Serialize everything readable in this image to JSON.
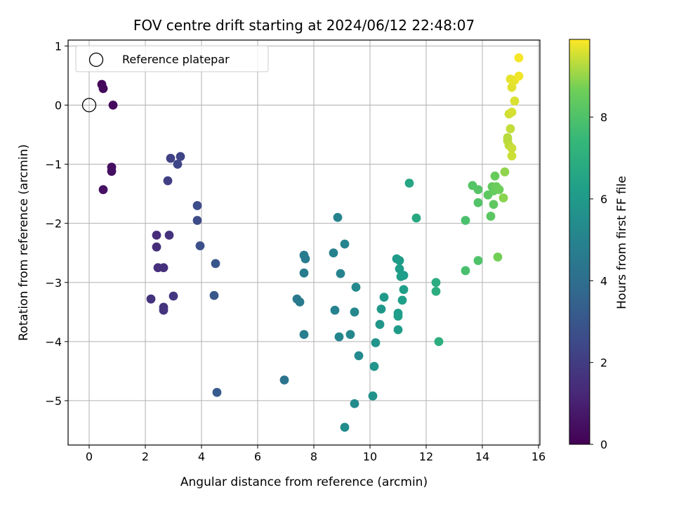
{
  "chart_data": {
    "type": "scatter",
    "title": "FOV centre drift starting at 2024/06/12 22:48:07",
    "xlabel": "Angular distance from reference (arcmin)",
    "ylabel": "Rotation from reference (arcmin)",
    "xlim": [
      -0.75,
      16.05
    ],
    "ylim": [
      -5.75,
      1.1
    ],
    "xticks": [
      0,
      2,
      4,
      6,
      8,
      10,
      12,
      14,
      16
    ],
    "yticks": [
      1,
      0,
      -1,
      -2,
      -3,
      -4,
      -5
    ],
    "grid": true,
    "legend": {
      "placement": "top-left",
      "entries": [
        {
          "label": "Reference platepar",
          "marker": "open-circle"
        }
      ]
    },
    "reference_point": {
      "x": 0,
      "y": 0
    },
    "colorbar": {
      "label": "Hours from first FF file",
      "colormap": "viridis",
      "range": [
        0,
        9.9
      ],
      "ticks": [
        0,
        2,
        4,
        6,
        8
      ]
    },
    "points": [
      {
        "x": 0.45,
        "y": 0.35,
        "c": 0.2
      },
      {
        "x": 0.5,
        "y": 0.28,
        "c": 0.25
      },
      {
        "x": 0.85,
        "y": 0.0,
        "c": 0.3
      },
      {
        "x": 0.8,
        "y": -1.05,
        "c": 0.4
      },
      {
        "x": 0.8,
        "y": -1.12,
        "c": 0.45
      },
      {
        "x": 0.5,
        "y": -1.43,
        "c": 0.5
      },
      {
        "x": 2.9,
        "y": -0.9,
        "c": 2.2
      },
      {
        "x": 3.25,
        "y": -0.87,
        "c": 2.3
      },
      {
        "x": 3.15,
        "y": -1.0,
        "c": 2.35
      },
      {
        "x": 2.8,
        "y": -1.28,
        "c": 2.1
      },
      {
        "x": 3.85,
        "y": -1.7,
        "c": 2.6
      },
      {
        "x": 3.85,
        "y": -1.95,
        "c": 2.55
      },
      {
        "x": 3.95,
        "y": -2.38,
        "c": 2.7
      },
      {
        "x": 2.4,
        "y": -2.2,
        "c": 1.4
      },
      {
        "x": 2.85,
        "y": -2.2,
        "c": 1.6
      },
      {
        "x": 2.4,
        "y": -2.4,
        "c": 1.45
      },
      {
        "x": 2.45,
        "y": -2.75,
        "c": 1.5
      },
      {
        "x": 2.65,
        "y": -2.75,
        "c": 1.55
      },
      {
        "x": 3.0,
        "y": -3.23,
        "c": 1.8
      },
      {
        "x": 2.2,
        "y": -3.28,
        "c": 1.6
      },
      {
        "x": 2.65,
        "y": -3.42,
        "c": 1.7
      },
      {
        "x": 2.65,
        "y": -3.47,
        "c": 1.72
      },
      {
        "x": 4.5,
        "y": -2.68,
        "c": 3.0
      },
      {
        "x": 4.45,
        "y": -3.22,
        "c": 3.05
      },
      {
        "x": 4.55,
        "y": -4.86,
        "c": 3.2
      },
      {
        "x": 6.95,
        "y": -4.65,
        "c": 4.3
      },
      {
        "x": 7.65,
        "y": -2.54,
        "c": 4.6
      },
      {
        "x": 7.7,
        "y": -2.6,
        "c": 4.62
      },
      {
        "x": 7.65,
        "y": -2.84,
        "c": 4.65
      },
      {
        "x": 7.4,
        "y": -3.28,
        "c": 4.5
      },
      {
        "x": 7.5,
        "y": -3.33,
        "c": 4.55
      },
      {
        "x": 7.65,
        "y": -3.88,
        "c": 4.7
      },
      {
        "x": 8.7,
        "y": -2.5,
        "c": 4.9
      },
      {
        "x": 8.85,
        "y": -1.9,
        "c": 5.0
      },
      {
        "x": 9.1,
        "y": -2.35,
        "c": 5.05
      },
      {
        "x": 8.95,
        "y": -2.85,
        "c": 5.0
      },
      {
        "x": 8.75,
        "y": -3.47,
        "c": 4.95
      },
      {
        "x": 8.9,
        "y": -3.92,
        "c": 5.1
      },
      {
        "x": 9.3,
        "y": -3.88,
        "c": 5.15
      },
      {
        "x": 9.5,
        "y": -3.08,
        "c": 5.25
      },
      {
        "x": 9.45,
        "y": -3.5,
        "c": 5.2
      },
      {
        "x": 9.6,
        "y": -4.24,
        "c": 5.3
      },
      {
        "x": 9.45,
        "y": -5.05,
        "c": 5.35
      },
      {
        "x": 9.1,
        "y": -5.45,
        "c": 5.4
      },
      {
        "x": 10.1,
        "y": -4.92,
        "c": 5.7
      },
      {
        "x": 10.15,
        "y": -4.42,
        "c": 5.75
      },
      {
        "x": 10.2,
        "y": -4.02,
        "c": 5.8
      },
      {
        "x": 10.35,
        "y": -3.71,
        "c": 5.85
      },
      {
        "x": 10.4,
        "y": -3.45,
        "c": 5.9
      },
      {
        "x": 10.5,
        "y": -3.25,
        "c": 5.95
      },
      {
        "x": 10.95,
        "y": -2.6,
        "c": 6.1
      },
      {
        "x": 11.05,
        "y": -2.63,
        "c": 6.12
      },
      {
        "x": 11.05,
        "y": -2.77,
        "c": 6.15
      },
      {
        "x": 11.2,
        "y": -2.88,
        "c": 6.2
      },
      {
        "x": 11.1,
        "y": -2.9,
        "c": 6.18
      },
      {
        "x": 11.2,
        "y": -3.12,
        "c": 6.22
      },
      {
        "x": 11.15,
        "y": -3.3,
        "c": 6.25
      },
      {
        "x": 11.0,
        "y": -3.52,
        "c": 6.15
      },
      {
        "x": 11.0,
        "y": -3.57,
        "c": 6.17
      },
      {
        "x": 11.0,
        "y": -3.8,
        "c": 6.1
      },
      {
        "x": 11.4,
        "y": -1.32,
        "c": 6.6
      },
      {
        "x": 11.65,
        "y": -1.91,
        "c": 6.7
      },
      {
        "x": 12.35,
        "y": -3.0,
        "c": 6.9
      },
      {
        "x": 12.35,
        "y": -3.15,
        "c": 6.95
      },
      {
        "x": 12.45,
        "y": -4.0,
        "c": 7.0
      },
      {
        "x": 13.4,
        "y": -1.95,
        "c": 7.9
      },
      {
        "x": 13.4,
        "y": -2.8,
        "c": 7.85
      },
      {
        "x": 13.85,
        "y": -2.63,
        "c": 8.0
      },
      {
        "x": 13.65,
        "y": -1.36,
        "c": 8.1
      },
      {
        "x": 13.85,
        "y": -1.43,
        "c": 8.15
      },
      {
        "x": 13.85,
        "y": -1.65,
        "c": 8.05
      },
      {
        "x": 14.2,
        "y": -1.52,
        "c": 8.3
      },
      {
        "x": 14.3,
        "y": -1.88,
        "c": 8.25
      },
      {
        "x": 14.35,
        "y": -1.38,
        "c": 8.4
      },
      {
        "x": 14.4,
        "y": -1.45,
        "c": 8.45
      },
      {
        "x": 14.4,
        "y": -1.68,
        "c": 8.35
      },
      {
        "x": 14.45,
        "y": -1.2,
        "c": 8.5
      },
      {
        "x": 14.5,
        "y": -1.38,
        "c": 8.55
      },
      {
        "x": 14.6,
        "y": -1.43,
        "c": 8.6
      },
      {
        "x": 14.55,
        "y": -2.57,
        "c": 8.7
      },
      {
        "x": 14.75,
        "y": -1.57,
        "c": 8.9
      },
      {
        "x": 14.8,
        "y": -1.13,
        "c": 8.95
      },
      {
        "x": 14.9,
        "y": -0.55,
        "c": 9.3
      },
      {
        "x": 14.9,
        "y": -0.6,
        "c": 9.32
      },
      {
        "x": 14.95,
        "y": -0.68,
        "c": 9.35
      },
      {
        "x": 15.0,
        "y": -0.4,
        "c": 9.4
      },
      {
        "x": 15.05,
        "y": -0.73,
        "c": 9.45
      },
      {
        "x": 15.05,
        "y": -0.86,
        "c": 9.48
      },
      {
        "x": 14.95,
        "y": -0.15,
        "c": 9.5
      },
      {
        "x": 15.05,
        "y": -0.12,
        "c": 9.55
      },
      {
        "x": 15.15,
        "y": 0.07,
        "c": 9.6
      },
      {
        "x": 15.05,
        "y": 0.3,
        "c": 9.65
      },
      {
        "x": 15.0,
        "y": 0.44,
        "c": 9.7
      },
      {
        "x": 15.15,
        "y": 0.42,
        "c": 9.72
      },
      {
        "x": 15.3,
        "y": 0.49,
        "c": 9.8
      },
      {
        "x": 15.3,
        "y": 0.8,
        "c": 9.85
      }
    ]
  }
}
